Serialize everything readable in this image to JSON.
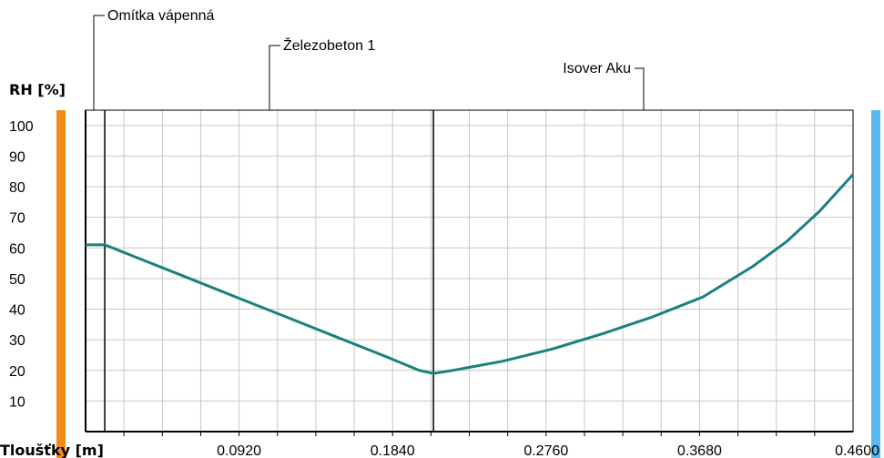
{
  "chart_data": {
    "type": "line",
    "ylabel": "RH [%]",
    "xlabel": "Tloušťky [m]",
    "xlim": [
      0,
      0.46
    ],
    "ylim": [
      0,
      105
    ],
    "y_ticks": [
      "10",
      "20",
      "30",
      "40",
      "50",
      "60",
      "70",
      "80",
      "90",
      "100"
    ],
    "x_ticks": [
      "0.0920",
      "0.1840",
      "0.2760",
      "0.3680",
      "0.4600"
    ],
    "grid": true,
    "colors": {
      "line": "#1a8080",
      "interior_bar": "#f28a17",
      "exterior_bar": "#56baf0",
      "grid": "#c8c8c8",
      "axis": "#000000"
    },
    "layers": [
      {
        "name": "Omítka vápenná",
        "boundary_x": 0.0115
      },
      {
        "name": "Železobeton 1",
        "boundary_x": 0.2085
      },
      {
        "name": "Isover Aku",
        "boundary_x": 0.46
      }
    ],
    "series": [
      {
        "x": [
          0,
          0.0115,
          0.03,
          0.06,
          0.09,
          0.12,
          0.15,
          0.18,
          0.2,
          0.2085,
          0.22,
          0.25,
          0.28,
          0.31,
          0.34,
          0.37,
          0.4,
          0.42,
          0.44,
          0.46
        ],
        "y": [
          61,
          61,
          57,
          50.5,
          44,
          37.5,
          31,
          24.5,
          20,
          19,
          20,
          23,
          27,
          32,
          37.5,
          44,
          54,
          62,
          72,
          84
        ]
      }
    ]
  }
}
